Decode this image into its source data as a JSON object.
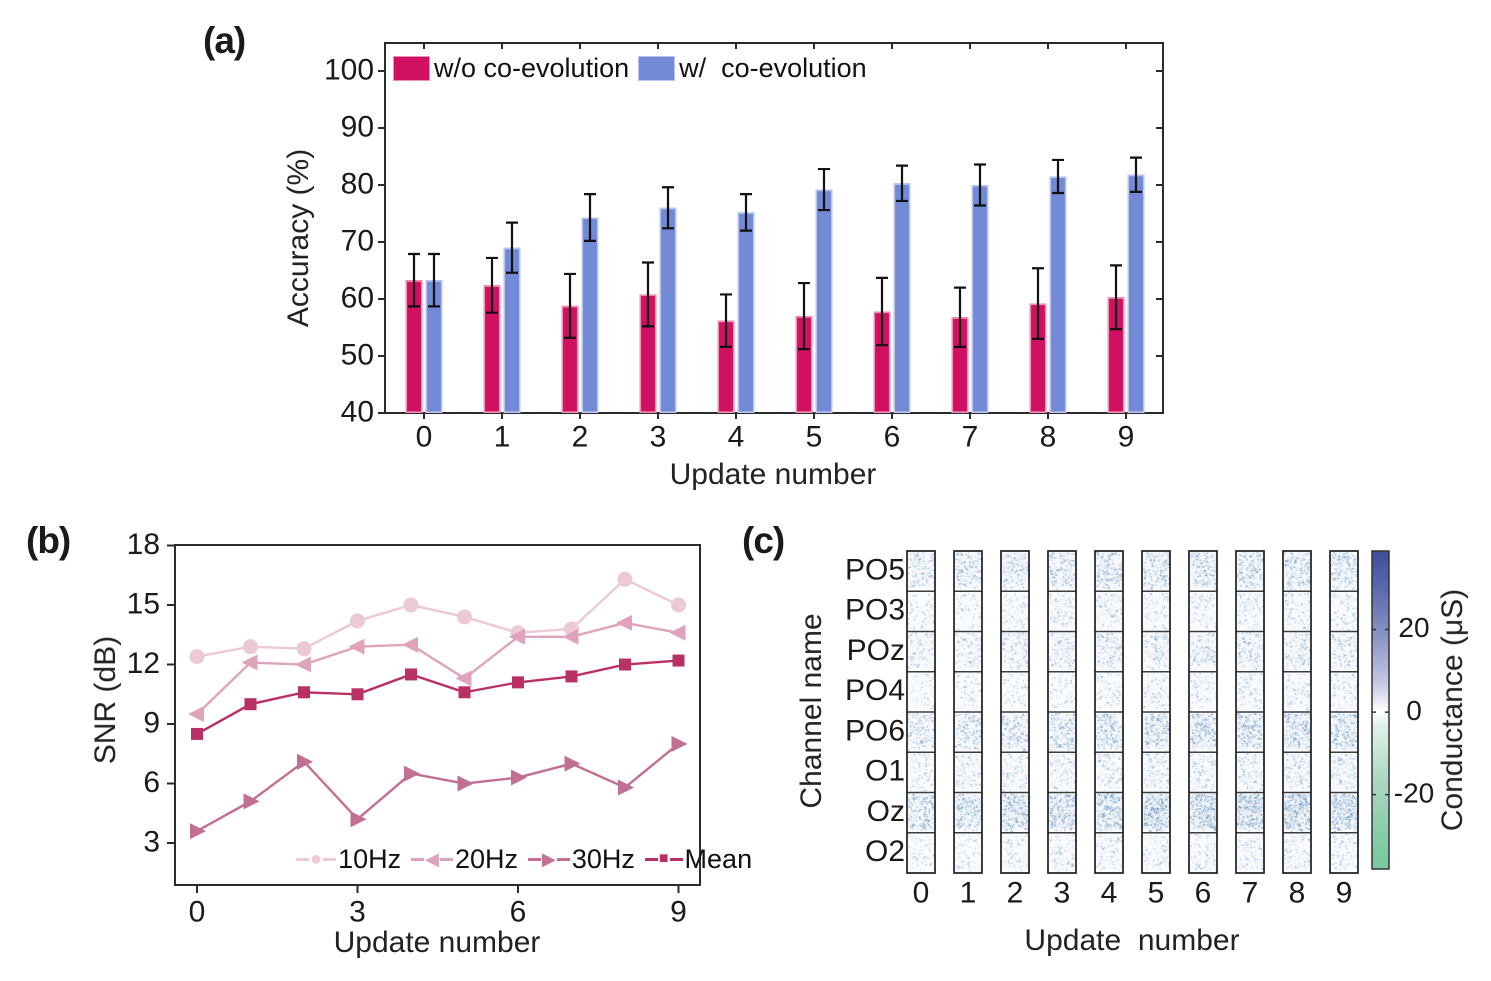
{
  "figure": {
    "panels": [
      {
        "id": "a",
        "label": "(a)"
      },
      {
        "id": "b",
        "label": "(b)"
      },
      {
        "id": "c",
        "label": "(c)"
      }
    ]
  },
  "chart_data": [
    {
      "id": "a",
      "type": "bar",
      "xlabel": "Update number",
      "ylabel": "Accuracy (%)",
      "categories": [
        "0",
        "1",
        "2",
        "3",
        "4",
        "5",
        "6",
        "7",
        "8",
        "9"
      ],
      "ylim": [
        40,
        105
      ],
      "yticks": [
        40,
        50,
        60,
        70,
        80,
        90,
        100
      ],
      "grid": false,
      "legend_position": "top-left-inside",
      "error_bar_color": "#111111",
      "series": [
        {
          "name": "w/o co-evolution",
          "color": "#d01060",
          "edge_color": "#ee8fb4",
          "values": [
            63.3,
            62.4,
            58.8,
            60.8,
            56.2,
            57.0,
            57.8,
            56.8,
            59.2,
            60.3
          ],
          "errors": [
            4.6,
            4.8,
            5.6,
            5.6,
            4.6,
            5.8,
            5.9,
            5.2,
            6.2,
            5.6
          ]
        },
        {
          "name": "w/  co-evolution",
          "color": "#7289d5",
          "edge_color": "#b9c4ee",
          "values": [
            63.3,
            69.0,
            74.3,
            76.0,
            75.2,
            79.2,
            80.3,
            80.0,
            81.5,
            81.8
          ],
          "errors": [
            4.6,
            4.4,
            4.1,
            3.6,
            3.2,
            3.6,
            3.1,
            3.6,
            2.9,
            3.0
          ]
        }
      ]
    },
    {
      "id": "b",
      "type": "line",
      "xlabel": "Update number",
      "ylabel": "SNR (dB)",
      "x": [
        0,
        1,
        2,
        3,
        4,
        5,
        6,
        7,
        8,
        9
      ],
      "xticks": [
        0,
        3,
        6,
        9
      ],
      "ylim": [
        1,
        18
      ],
      "yticks": [
        3,
        6,
        9,
        12,
        15,
        18
      ],
      "grid": false,
      "legend_position": "bottom-inside",
      "series": [
        {
          "name": "10Hz",
          "marker": "circle",
          "color": "#ecc9d7",
          "values": [
            12.4,
            12.9,
            12.8,
            14.2,
            15.0,
            14.4,
            13.6,
            13.8,
            16.3,
            15.0
          ]
        },
        {
          "name": "20Hz",
          "marker": "triangle-left",
          "color": "#dfa3bc",
          "values": [
            9.5,
            12.1,
            12.0,
            12.9,
            13.0,
            11.3,
            13.4,
            13.4,
            14.1,
            13.6
          ]
        },
        {
          "name": "30Hz",
          "marker": "triangle-right",
          "color": "#c26f94",
          "values": [
            3.6,
            5.1,
            7.1,
            4.2,
            6.5,
            6.0,
            6.3,
            7.0,
            5.8,
            8.0
          ]
        },
        {
          "name": "Mean",
          "marker": "square",
          "color": "#b93067",
          "values": [
            8.5,
            10.0,
            10.6,
            10.5,
            11.5,
            10.6,
            11.1,
            11.4,
            12.0,
            12.2
          ]
        }
      ]
    },
    {
      "id": "c",
      "type": "heatmap",
      "xlabel": "Update  number",
      "ylabel": "Channel name",
      "rows": [
        "PO5",
        "PO3",
        "POz",
        "PO4",
        "PO6",
        "O1",
        "Oz",
        "O2"
      ],
      "columns": [
        "0",
        "1",
        "2",
        "3",
        "4",
        "5",
        "6",
        "7",
        "8",
        "9"
      ],
      "row_intensity": [
        0.52,
        0.2,
        0.36,
        0.18,
        0.58,
        0.28,
        0.8,
        0.2
      ],
      "column_gain": [
        0.7,
        0.78,
        0.86,
        0.9,
        0.96,
        1.0,
        1.02,
        1.05,
        1.05,
        1.08
      ],
      "speckle_colors": [
        "#dce8f0",
        "#c2d5e6",
        "#a9c4dc",
        "#8fb2d2",
        "#7da3c8"
      ],
      "colorbar": {
        "label": "Conductance (μS)",
        "ticks": [
          20,
          0,
          -20
        ],
        "range": [
          -38,
          39
        ],
        "gradient_top_to_bottom": [
          "#3f4e9c",
          "#5c69ae",
          "#8e97c7",
          "#c6cbe3",
          "#ffffff",
          "#e2f1e9",
          "#abd8c0",
          "#85cca6",
          "#79c79c"
        ]
      }
    }
  ]
}
